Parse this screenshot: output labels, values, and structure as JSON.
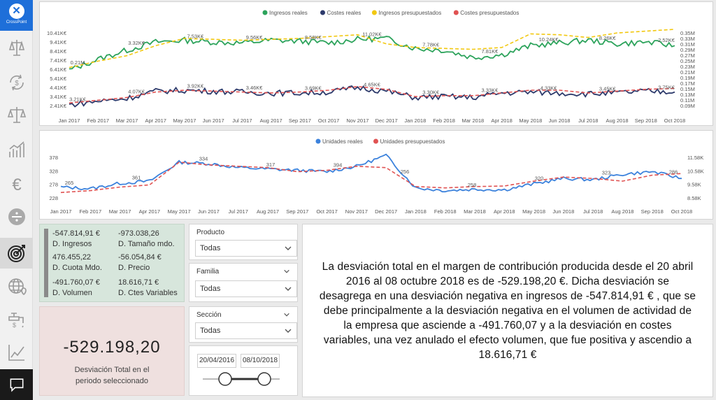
{
  "app": {
    "logo_text": "CrossPoint"
  },
  "sidebar": {
    "items": [
      {
        "icon": "scales-icon"
      },
      {
        "icon": "refresh-coin-icon"
      },
      {
        "icon": "balance-icon"
      },
      {
        "icon": "bar-trend-icon"
      },
      {
        "icon": "euro-icon"
      },
      {
        "icon": "divide-icon"
      },
      {
        "icon": "target-icon",
        "active": true
      },
      {
        "icon": "globe-icon"
      },
      {
        "icon": "faucet-icon"
      },
      {
        "icon": "line-trend-icon"
      }
    ],
    "chat_icon": "chat-icon"
  },
  "colors": {
    "green": "#2ca35b",
    "navy": "#2d3a6b",
    "yellow": "#f2c811",
    "red": "#e05252",
    "blue": "#3c82dc"
  },
  "chart_data": [
    {
      "type": "line",
      "legend": [
        "Ingresos reales",
        "Costes reales",
        "Ingresos presupuestados",
        "Costes presupuestados"
      ],
      "x_ticks": [
        "Jan 2017",
        "Feb 2017",
        "Mar 2017",
        "Apr 2017",
        "May 2017",
        "Jun 2017",
        "Jul 2017",
        "Aug 2017",
        "Sep 2017",
        "Oct 2017",
        "Nov 2017",
        "Dec 2017",
        "Jan 2018",
        "Feb 2018",
        "Mar 2018",
        "Apr 2018",
        "May 2018",
        "Jun 2018",
        "Jul 2018",
        "Aug 2018",
        "Sep 2018",
        "Oct 2018"
      ],
      "y_left_ticks": [
        "10.41K€",
        "9.41K€",
        "8.41K€",
        "7.41K€",
        "6.41K€",
        "5.41K€",
        "4.41K€",
        "3.41K€",
        "2.41K€"
      ],
      "y_right_ticks": [
        "0.35M",
        "0.33M",
        "0.31M",
        "0.29M",
        "0.27M",
        "0.25M",
        "0.23M",
        "0.21M",
        "0.19M",
        "0.17M",
        "0.15M",
        "0.13M",
        "0.11M",
        "0.09M"
      ],
      "ylim_left": [
        2.41,
        10.41
      ],
      "ylim_right": [
        0.09,
        0.35
      ],
      "data_labels": [
        "0.21M",
        "3.32K€",
        "7.53K€",
        "9.56K€",
        "8.58K€",
        "11.02K€",
        "7.78K€",
        "7.81K€",
        "10.24K€",
        "8.26K€",
        "2.52K€",
        "3.21K€",
        "4.07K€",
        "3.92K€",
        "3.46K€",
        "3.69K€",
        "4.65K€",
        "3.30K€",
        "3.33K€",
        "4.33K€",
        "3.45K€",
        "3.75K€"
      ],
      "series": [
        {
          "name": "Ingresos reales",
          "color": "#2ca35b",
          "values": [
            6.3,
            7.5,
            8.5,
            9.4,
            9.6,
            9.4,
            9.3,
            9.6,
            9.5,
            9.3,
            9.7,
            9.8,
            8.7,
            8.5,
            7.7,
            8.0,
            9.0,
            9.3,
            9.6,
            9.2,
            9.4,
            9.0
          ]
        },
        {
          "name": "Costes reales",
          "color": "#2d3a6b",
          "values": [
            2.5,
            2.9,
            3.2,
            4.0,
            4.1,
            4.0,
            3.9,
            3.8,
            3.8,
            3.9,
            4.4,
            4.0,
            3.3,
            3.4,
            3.3,
            3.8,
            3.9,
            3.8,
            3.7,
            3.8,
            4.0,
            3.9
          ]
        },
        {
          "name": "Ingresos presupuestados",
          "color": "#f2c811",
          "values": [
            6.6,
            7.3,
            7.9,
            9.0,
            9.8,
            9.7,
            9.6,
            9.7,
            9.8,
            10.0,
            10.2,
            9.2,
            8.8,
            8.7,
            8.6,
            8.8,
            10.3,
            10.2,
            9.9,
            10.4,
            10.6,
            10.8
          ]
        },
        {
          "name": "Costes presupuestados",
          "color": "#e05252",
          "values": [
            2.7,
            3.0,
            3.3,
            3.9,
            4.1,
            4.0,
            3.9,
            3.8,
            3.9,
            4.1,
            4.5,
            4.2,
            3.4,
            3.5,
            3.5,
            3.8,
            4.1,
            4.1,
            3.8,
            4.0,
            4.2,
            4.3
          ]
        }
      ]
    },
    {
      "type": "line",
      "legend": [
        "Unidades reales",
        "Unidades presupuestados"
      ],
      "x_ticks": [
        "Jan 2017",
        "Feb 2017",
        "Mar 2017",
        "Apr 2017",
        "May 2017",
        "Jun 2017",
        "Jul 2017",
        "Aug 2017",
        "Sep 2017",
        "Oct 2017",
        "Nov 2017",
        "Dec 2017",
        "Jan 2018",
        "Feb 2018",
        "Mar 2018",
        "Apr 2018",
        "May 2018",
        "Jun 2018",
        "Jul 2018",
        "Aug 2018",
        "Sep 2018",
        "Oct 2018"
      ],
      "y_left_ticks": [
        "378",
        "328",
        "278",
        "228"
      ],
      "y_right_ticks": [
        "11.58K",
        "10.58K",
        "9.58K",
        "8.58K"
      ],
      "ylim_left": [
        228,
        378
      ],
      "data_labels": [
        "265",
        "361",
        "334",
        "317",
        "394",
        "256",
        "258",
        "320",
        "323",
        "286"
      ],
      "series": [
        {
          "name": "Unidades reales",
          "color": "#3c82dc",
          "values": [
            268,
            262,
            282,
            290,
            360,
            355,
            340,
            335,
            330,
            325,
            345,
            385,
            265,
            255,
            260,
            258,
            280,
            300,
            295,
            315,
            325,
            300
          ]
        },
        {
          "name": "Unidades presupuestados",
          "color": "#e05252",
          "values": [
            248,
            255,
            268,
            276,
            360,
            350,
            345,
            340,
            325,
            330,
            345,
            340,
            270,
            265,
            270,
            272,
            290,
            305,
            300,
            290,
            312,
            318
          ]
        }
      ]
    }
  ],
  "kpi": {
    "d_ingresos_value": "-547.814,91 €",
    "d_ingresos_label": "D. Ingresos",
    "d_tamano_value": "-973.038,26",
    "d_tamano_label": "D. Tamaño mdo.",
    "d_cuota_value": "476.455,22",
    "d_cuota_label": "D. Cuota Mdo.",
    "d_precio_value": "-56.054,84 €",
    "d_precio_label": "D. Precio",
    "d_volumen_value": "-491.760,07 €",
    "d_volumen_label": "D. Volumen",
    "d_ctes_value": "18.616,71 €",
    "d_ctes_label": "D. Ctes Variables"
  },
  "total": {
    "value": "-529.198,20",
    "label": "Desviación Total en el periodo seleccionado"
  },
  "slicers": {
    "producto": {
      "title": "Producto",
      "value": "Todas"
    },
    "familia": {
      "title": "Familia",
      "value": "Todas"
    },
    "seccion": {
      "title": "Sección",
      "value": "Todas"
    },
    "date": {
      "start": "20/04/2016",
      "end": "08/10/2018",
      "range_start_fraction": 0.0,
      "range_end_fraction": 1.0
    }
  },
  "narrative": "La desviación total en el margen de contribución producida desde el 20 abril 2016 al 08 octubre 2018 es de -529.198,20 €. Dicha desviación se desagrega en una desviación negativa en ingresos de -547.814,91 € , que se debe principalmente a la desviación negativa en el volumen de actividad de la empresa que asciende a -491.760,07 y a la desviación en costes variables, una vez anulado el efecto volumen, que fue positiva y ascendio a 18.616,71 €"
}
